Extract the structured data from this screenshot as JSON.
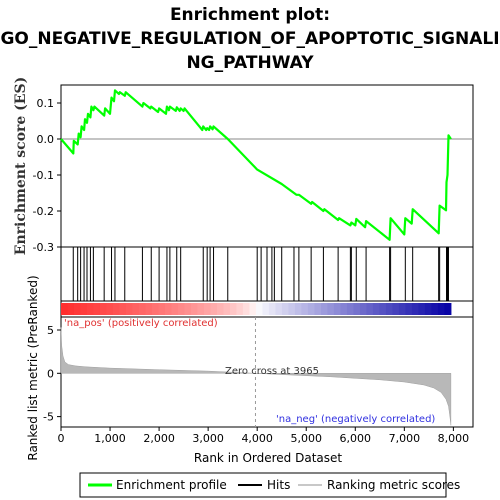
{
  "chart_data": {
    "type": "line",
    "title_line1": "Enrichment plot:",
    "title_line2": "GO_NEGATIVE_REGULATION_OF_APOPTOTIC_SIGNALI",
    "title_line3": "NG_PATHWAY",
    "ylabel_es": "Enrichment score (ES)",
    "ylabel_metric": "Ranked list metric (PreRanked)",
    "xlabel": "Rank in Ordered Dataset",
    "es_yticks": [
      0.1,
      0.0,
      -0.1,
      -0.2,
      -0.3
    ],
    "es_ytick_labels": [
      "0.1",
      "0.0",
      "-0.1",
      "-0.2",
      "-0.3"
    ],
    "es_ylim": [
      -0.3,
      0.15
    ],
    "metric_yticks": [
      5,
      0,
      -5
    ],
    "metric_ytick_labels": [
      "5",
      "0",
      "-5"
    ],
    "metric_ylim": [
      -6.2,
      6.5
    ],
    "xticks": [
      0,
      1000,
      2000,
      3000,
      4000,
      5000,
      6000,
      7000,
      8000
    ],
    "xtick_labels": [
      "0",
      "1,000",
      "2,000",
      "3,000",
      "4,000",
      "5,000",
      "6,000",
      "7,000",
      "8,000"
    ],
    "xlim": [
      0,
      8400
    ],
    "n_genes": 7950,
    "zero_cross": 3965,
    "zero_cross_label": "Zero cross at 3965",
    "pos_label": "'na_pos' (positively correlated)",
    "neg_label": "'na_neg' (negatively correlated)",
    "series": [
      {
        "name": "Enrichment profile",
        "color": "#00ff00",
        "x": [
          0,
          250,
          260,
          340,
          360,
          400,
          420,
          470,
          490,
          530,
          550,
          600,
          620,
          660,
          680,
          880,
          900,
          1000,
          1030,
          1080,
          1100,
          1180,
          1200,
          1300,
          1320,
          1660,
          1680,
          1820,
          1840,
          1980,
          2000,
          2140,
          2160,
          2200,
          2220,
          2340,
          2360,
          2420,
          2440,
          2500,
          2520,
          2880,
          2900,
          2960,
          2980,
          3020,
          3040,
          3090,
          3110,
          3400,
          4000,
          4500,
          4800,
          4850,
          5100,
          5120,
          5350,
          5370,
          5650,
          5670,
          5900,
          5920,
          6000,
          6020,
          6200,
          6220,
          6700,
          6720,
          7000,
          7020,
          7150,
          7170,
          7700,
          7720,
          7850,
          7860,
          7880,
          7900,
          7950
        ],
        "y": [
          0.0,
          -0.04,
          -0.005,
          -0.015,
          0.015,
          0.005,
          0.035,
          0.025,
          0.055,
          0.045,
          0.07,
          0.06,
          0.09,
          0.08,
          0.09,
          0.065,
          0.085,
          0.07,
          0.115,
          0.105,
          0.135,
          0.125,
          0.13,
          0.12,
          0.13,
          0.09,
          0.1,
          0.085,
          0.09,
          0.075,
          0.085,
          0.07,
          0.09,
          0.08,
          0.09,
          0.078,
          0.088,
          0.078,
          0.085,
          0.078,
          0.085,
          0.025,
          0.035,
          0.025,
          0.03,
          0.025,
          0.035,
          0.027,
          0.035,
          0.0,
          -0.085,
          -0.125,
          -0.155,
          -0.155,
          -0.18,
          -0.175,
          -0.2,
          -0.195,
          -0.225,
          -0.22,
          -0.24,
          -0.232,
          -0.24,
          -0.222,
          -0.245,
          -0.228,
          -0.28,
          -0.22,
          -0.265,
          -0.22,
          -0.235,
          -0.195,
          -0.262,
          -0.185,
          -0.198,
          -0.12,
          -0.1,
          0.01,
          0.0
        ]
      },
      {
        "name": "Hits",
        "color": "#000000",
        "x": [
          250,
          340,
          400,
          470,
          530,
          600,
          660,
          880,
          1030,
          1100,
          1300,
          1660,
          1840,
          2000,
          2160,
          2220,
          2360,
          2440,
          2900,
          2980,
          3040,
          3110,
          3400,
          4000,
          4080,
          4200,
          4300,
          4350,
          4500,
          4750,
          4850,
          5100,
          5350,
          5650,
          5900,
          5920,
          6020,
          6220,
          6700,
          6720,
          7020,
          7170,
          7700,
          7720,
          7860,
          7880,
          7900
        ]
      },
      {
        "name": "Ranking metric scores",
        "color": "#b8b8b8",
        "x": [
          0,
          15,
          40,
          80,
          150,
          300,
          500,
          1000,
          2000,
          3000,
          3965,
          4500,
          5500,
          6500,
          7000,
          7400,
          7600,
          7750,
          7850,
          7900,
          7930,
          7950
        ],
        "y": [
          5.3,
          3.2,
          2.0,
          1.3,
          1.0,
          0.85,
          0.75,
          0.6,
          0.42,
          0.25,
          0.0,
          -0.15,
          -0.4,
          -0.75,
          -1.0,
          -1.35,
          -1.7,
          -2.2,
          -3.0,
          -3.8,
          -5.0,
          -6.0
        ]
      }
    ]
  },
  "legend": {
    "items": [
      {
        "label": "Enrichment profile",
        "color": "#00ff00"
      },
      {
        "label": "Hits",
        "color": "#000000"
      },
      {
        "label": "Ranking metric scores",
        "color": "#c8c8c8"
      }
    ]
  }
}
